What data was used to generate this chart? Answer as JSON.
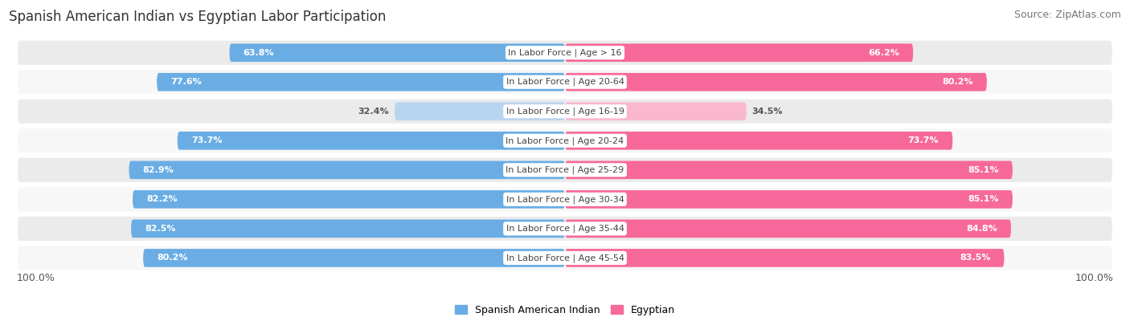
{
  "title": "Spanish American Indian vs Egyptian Labor Participation",
  "source": "Source: ZipAtlas.com",
  "categories": [
    "In Labor Force | Age > 16",
    "In Labor Force | Age 20-64",
    "In Labor Force | Age 16-19",
    "In Labor Force | Age 20-24",
    "In Labor Force | Age 25-29",
    "In Labor Force | Age 30-34",
    "In Labor Force | Age 35-44",
    "In Labor Force | Age 45-54"
  ],
  "spanish_values": [
    63.8,
    77.6,
    32.4,
    73.7,
    82.9,
    82.2,
    82.5,
    80.2
  ],
  "egyptian_values": [
    66.2,
    80.2,
    34.5,
    73.7,
    85.1,
    85.1,
    84.8,
    83.5
  ],
  "spanish_color": "#6aade4",
  "egyptian_color": "#f7699a",
  "spanish_color_light": "#b8d5f0",
  "egyptian_color_light": "#f9b8ce",
  "row_bg_even": "#ebebeb",
  "row_bg_odd": "#f7f7f7",
  "max_value": 100.0,
  "legend_spanish": "Spanish American Indian",
  "legend_egyptian": "Egyptian",
  "title_fontsize": 12,
  "source_fontsize": 9,
  "label_fontsize": 8,
  "value_fontsize": 8,
  "background_color": "#ffffff",
  "bottom_label": "100.0%"
}
